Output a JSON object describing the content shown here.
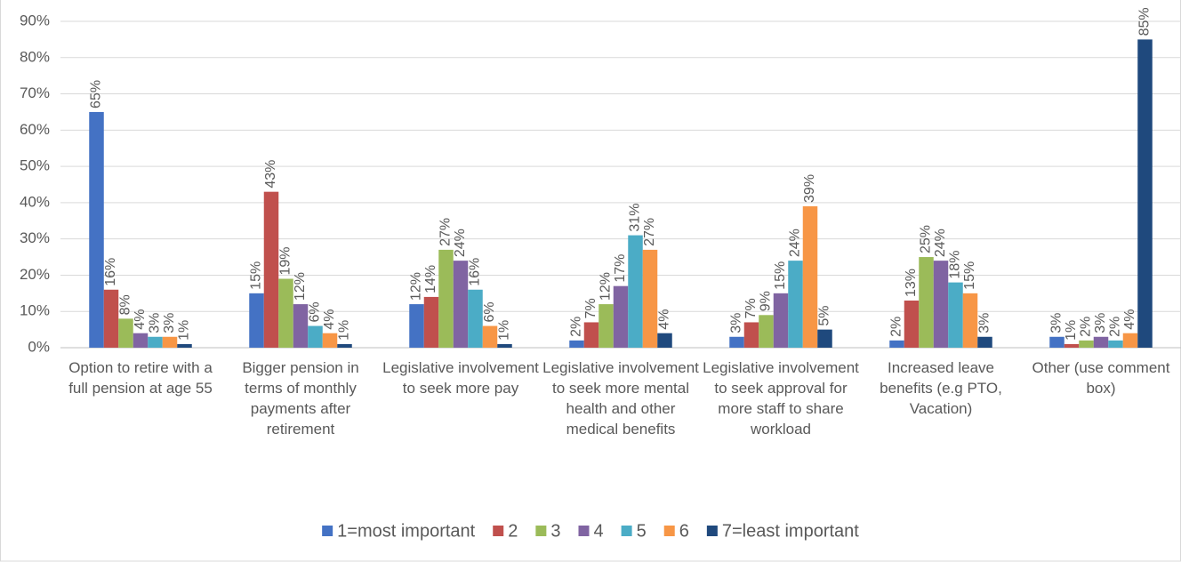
{
  "chart_data": {
    "type": "bar",
    "categories": [
      "Option to retire with a full pension at age 55",
      "Bigger pension in terms of monthly payments after retirement",
      "Legislative involvement to seek more pay",
      "Legislative involvement to seek more mental health and other medical benefits",
      "Legislative involvement to seek approval for more staff to share workload",
      "Increased leave benefits (e.g PTO, Vacation)",
      "Other (use comment box)"
    ],
    "series": [
      {
        "name": "1=most important",
        "color": "#4472c4",
        "values": [
          65,
          15,
          12,
          2,
          3,
          2,
          3
        ],
        "value_labels": [
          "65%",
          "15%",
          "12%",
          "2%",
          "3%",
          "2%",
          "3%"
        ]
      },
      {
        "name": "2",
        "color": "#c0504d",
        "values": [
          16,
          43,
          14,
          7,
          7,
          13,
          1
        ],
        "value_labels": [
          "16%",
          "43%",
          "14%",
          "7%",
          "7%",
          "13%",
          "1%"
        ]
      },
      {
        "name": "3",
        "color": "#9bbb59",
        "values": [
          8,
          19,
          27,
          12,
          9,
          25,
          2
        ],
        "value_labels": [
          "8%",
          "19%",
          "27%",
          "12%",
          "9%",
          "25%",
          "2%"
        ]
      },
      {
        "name": "4",
        "color": "#8064a2",
        "values": [
          4,
          12,
          24,
          17,
          15,
          24,
          3
        ],
        "value_labels": [
          "4%",
          "12%",
          "24%",
          "17%",
          "15%",
          "24%",
          "3%"
        ]
      },
      {
        "name": "5",
        "color": "#4bacc6",
        "values": [
          3,
          6,
          16,
          31,
          24,
          18,
          2
        ],
        "value_labels": [
          "3%",
          "6%",
          "16%",
          "31%",
          "24%",
          "18%",
          "2%"
        ]
      },
      {
        "name": "6",
        "color": "#f79646",
        "values": [
          3,
          4,
          6,
          27,
          39,
          15,
          4
        ],
        "value_labels": [
          "3%",
          "4%",
          "6%",
          "27%",
          "39%",
          "15%",
          "4%"
        ]
      },
      {
        "name": "7=least important",
        "color": "#1f497d",
        "values": [
          1,
          1,
          1,
          4,
          5,
          3,
          85
        ],
        "value_labels": [
          "1%",
          "1%",
          "1%",
          "4%",
          "5%",
          "3%",
          "85%"
        ]
      }
    ],
    "ylim": [
      0,
      90
    ],
    "yticks": [
      {
        "value": 0,
        "label": "0%"
      },
      {
        "value": 10,
        "label": "10%"
      },
      {
        "value": 20,
        "label": "20%"
      },
      {
        "value": 30,
        "label": "30%"
      },
      {
        "value": 40,
        "label": "40%"
      },
      {
        "value": 50,
        "label": "50%"
      },
      {
        "value": 60,
        "label": "60%"
      },
      {
        "value": 70,
        "label": "70%"
      },
      {
        "value": 80,
        "label": "80%"
      },
      {
        "value": 90,
        "label": "90%"
      }
    ],
    "grid": true,
    "legend": "bottom"
  }
}
